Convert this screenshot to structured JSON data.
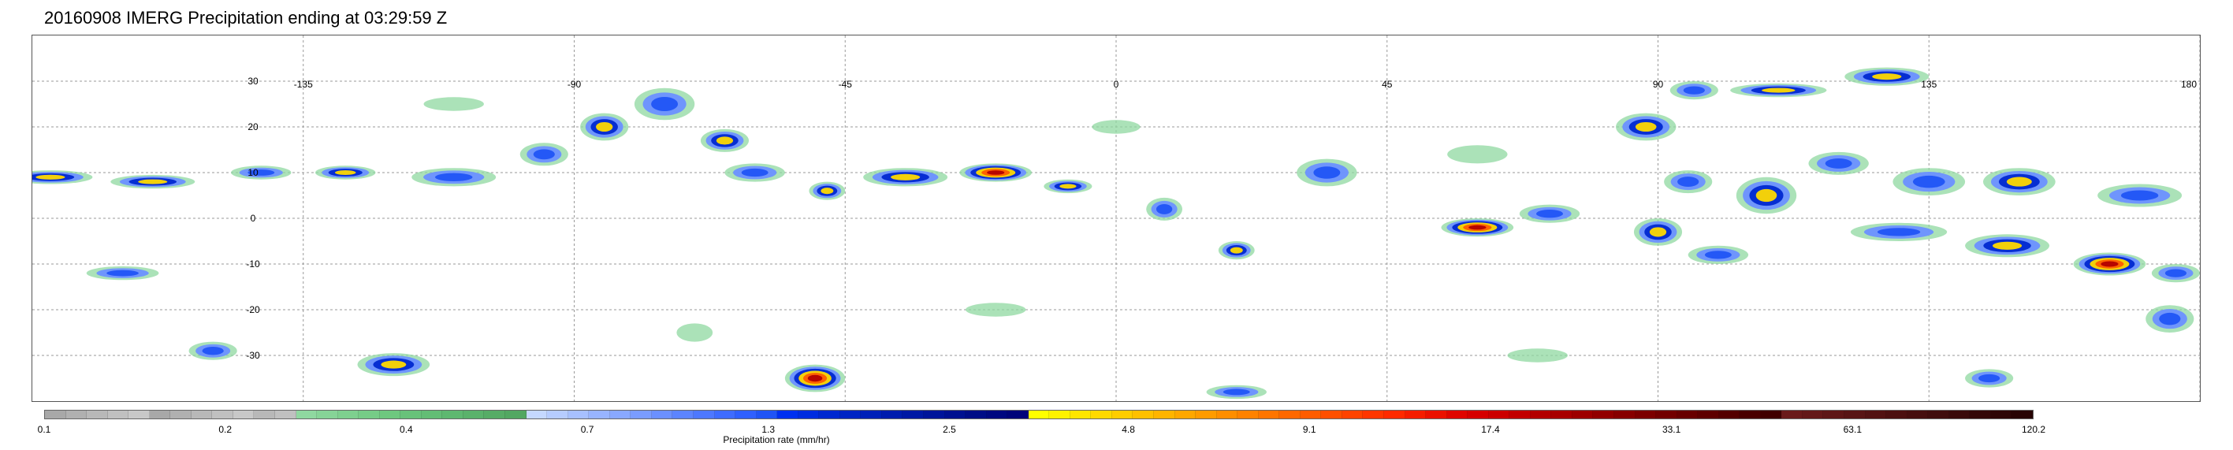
{
  "title": "20160908 IMERG Precipitation ending at 03:29:59 Z",
  "map": {
    "lon_range": [
      -180,
      180
    ],
    "lat_range": [
      -40,
      40
    ],
    "gridlines": true,
    "lon_labels": [
      {
        "lon": -135,
        "text": "-135"
      },
      {
        "lon": -90,
        "text": "-90"
      },
      {
        "lon": -45,
        "text": "-45"
      },
      {
        "lon": 0,
        "text": "0"
      },
      {
        "lon": 45,
        "text": "45"
      },
      {
        "lon": 90,
        "text": "90"
      },
      {
        "lon": 135,
        "text": "135"
      },
      {
        "lon": 180,
        "text": "180"
      }
    ],
    "lat_labels": [
      {
        "lat": 30,
        "text": "30"
      },
      {
        "lat": 20,
        "text": "20"
      },
      {
        "lat": 10,
        "text": "10"
      },
      {
        "lat": 0,
        "text": "0"
      },
      {
        "lat": -10,
        "text": "-10"
      },
      {
        "lat": -20,
        "text": "-20"
      },
      {
        "lat": -30,
        "text": "-30"
      }
    ],
    "precip_systems": [
      {
        "lon": -177,
        "lat": 9,
        "w": 14,
        "h": 3,
        "intensity": 3
      },
      {
        "lon": -160,
        "lat": 8,
        "w": 14,
        "h": 3,
        "intensity": 3
      },
      {
        "lon": -142,
        "lat": 10,
        "w": 10,
        "h": 3,
        "intensity": 2
      },
      {
        "lon": -128,
        "lat": 10,
        "w": 10,
        "h": 3,
        "intensity": 3
      },
      {
        "lon": -110,
        "lat": 9,
        "w": 14,
        "h": 4,
        "intensity": 2
      },
      {
        "lon": -95,
        "lat": 14,
        "w": 8,
        "h": 5,
        "intensity": 2
      },
      {
        "lon": -85,
        "lat": 20,
        "w": 8,
        "h": 6,
        "intensity": 3
      },
      {
        "lon": -75,
        "lat": 25,
        "w": 10,
        "h": 7,
        "intensity": 2
      },
      {
        "lon": -65,
        "lat": 17,
        "w": 8,
        "h": 5,
        "intensity": 3
      },
      {
        "lon": -60,
        "lat": 10,
        "w": 10,
        "h": 4,
        "intensity": 2
      },
      {
        "lon": -48,
        "lat": 6,
        "w": 6,
        "h": 4,
        "intensity": 3
      },
      {
        "lon": -35,
        "lat": 9,
        "w": 14,
        "h": 4,
        "intensity": 3
      },
      {
        "lon": -20,
        "lat": 10,
        "w": 12,
        "h": 4,
        "intensity": 4
      },
      {
        "lon": -8,
        "lat": 7,
        "w": 8,
        "h": 3,
        "intensity": 3
      },
      {
        "lon": 8,
        "lat": 2,
        "w": 6,
        "h": 5,
        "intensity": 2
      },
      {
        "lon": 20,
        "lat": -7,
        "w": 6,
        "h": 4,
        "intensity": 3
      },
      {
        "lon": 35,
        "lat": 10,
        "w": 10,
        "h": 6,
        "intensity": 2
      },
      {
        "lon": 60,
        "lat": -2,
        "w": 12,
        "h": 4,
        "intensity": 4
      },
      {
        "lon": 72,
        "lat": 1,
        "w": 10,
        "h": 4,
        "intensity": 2
      },
      {
        "lon": 88,
        "lat": 20,
        "w": 10,
        "h": 6,
        "intensity": 3
      },
      {
        "lon": 96,
        "lat": 28,
        "w": 8,
        "h": 4,
        "intensity": 2
      },
      {
        "lon": 110,
        "lat": 28,
        "w": 16,
        "h": 3,
        "intensity": 3
      },
      {
        "lon": 128,
        "lat": 31,
        "w": 14,
        "h": 4,
        "intensity": 3
      },
      {
        "lon": 95,
        "lat": 8,
        "w": 8,
        "h": 5,
        "intensity": 2
      },
      {
        "lon": 108,
        "lat": 5,
        "w": 10,
        "h": 8,
        "intensity": 3
      },
      {
        "lon": 120,
        "lat": 12,
        "w": 10,
        "h": 5,
        "intensity": 2
      },
      {
        "lon": 135,
        "lat": 8,
        "w": 12,
        "h": 6,
        "intensity": 2
      },
      {
        "lon": 150,
        "lat": 8,
        "w": 12,
        "h": 6,
        "intensity": 3
      },
      {
        "lon": 170,
        "lat": 5,
        "w": 14,
        "h": 5,
        "intensity": 2
      },
      {
        "lon": 90,
        "lat": -3,
        "w": 8,
        "h": 6,
        "intensity": 3
      },
      {
        "lon": 100,
        "lat": -8,
        "w": 10,
        "h": 4,
        "intensity": 2
      },
      {
        "lon": 130,
        "lat": -3,
        "w": 16,
        "h": 4,
        "intensity": 2
      },
      {
        "lon": 148,
        "lat": -6,
        "w": 14,
        "h": 5,
        "intensity": 3
      },
      {
        "lon": 165,
        "lat": -10,
        "w": 12,
        "h": 5,
        "intensity": 4
      },
      {
        "lon": 176,
        "lat": -12,
        "w": 8,
        "h": 4,
        "intensity": 2
      },
      {
        "lon": -165,
        "lat": -12,
        "w": 12,
        "h": 3,
        "intensity": 2
      },
      {
        "lon": -150,
        "lat": -29,
        "w": 8,
        "h": 4,
        "intensity": 2
      },
      {
        "lon": -120,
        "lat": -32,
        "w": 12,
        "h": 5,
        "intensity": 3
      },
      {
        "lon": -50,
        "lat": -35,
        "w": 10,
        "h": 6,
        "intensity": 4
      },
      {
        "lon": -70,
        "lat": -25,
        "w": 6,
        "h": 4,
        "intensity": 1
      },
      {
        "lon": -20,
        "lat": -20,
        "w": 10,
        "h": 3,
        "intensity": 1
      },
      {
        "lon": 20,
        "lat": -38,
        "w": 10,
        "h": 3,
        "intensity": 2
      },
      {
        "lon": 145,
        "lat": -35,
        "w": 8,
        "h": 4,
        "intensity": 2
      },
      {
        "lon": 175,
        "lat": -22,
        "w": 8,
        "h": 6,
        "intensity": 2
      },
      {
        "lon": 60,
        "lat": 14,
        "w": 10,
        "h": 4,
        "intensity": 1
      },
      {
        "lon": 0,
        "lat": 20,
        "w": 8,
        "h": 3,
        "intensity": 1
      },
      {
        "lon": -110,
        "lat": 25,
        "w": 10,
        "h": 3,
        "intensity": 1
      },
      {
        "lon": 70,
        "lat": -30,
        "w": 10,
        "h": 3,
        "intensity": 1
      }
    ]
  },
  "colorbar": {
    "label": "Precipitation rate (mm/hr)",
    "colors": [
      "#a8a8a8",
      "#b0b0b0",
      "#b8b8b8",
      "#c0c0c0",
      "#c8c8c8",
      "#a8a8a8",
      "#b0b0b0",
      "#b8b8b8",
      "#c0c0c0",
      "#c8c8c8",
      "#b8b8b8",
      "#c0c0c0",
      "#8fd8a0",
      "#86d497",
      "#7ed08f",
      "#76cc87",
      "#6ec87f",
      "#68c27a",
      "#63bd75",
      "#5eb870",
      "#5ab26b",
      "#56ac66",
      "#52a762",
      "#c5d8ff",
      "#b6ccff",
      "#a7c0ff",
      "#98b4ff",
      "#89a8ff",
      "#7a9cff",
      "#6b90ff",
      "#5c84ff",
      "#4d78ff",
      "#3e6cff",
      "#2f60ff",
      "#2054f5",
      "#0030f0",
      "#002ce0",
      "#0028d0",
      "#0024c4",
      "#0020b8",
      "#001cae",
      "#0018a4",
      "#00149a",
      "#001090",
      "#000c86",
      "#000880",
      "#00047a",
      "#ffff00",
      "#fff200",
      "#ffe600",
      "#ffd900",
      "#ffcd00",
      "#ffc000",
      "#ffb400",
      "#ffa700",
      "#ff9b00",
      "#ff8e00",
      "#ff8200",
      "#ff7500",
      "#ff6800",
      "#ff5c00",
      "#ff4f00",
      "#ff4300",
      "#ff3600",
      "#ff2a00",
      "#f51d00",
      "#eb1100",
      "#e00500",
      "#d60000",
      "#cc0000",
      "#c20000",
      "#b30000",
      "#a80000",
      "#9d0000",
      "#920000",
      "#870000",
      "#7c0000",
      "#720000",
      "#680000",
      "#5e0000",
      "#540000",
      "#4a0000",
      "#400000",
      "#6a1a1a",
      "#641818",
      "#5e1616",
      "#581414",
      "#521212",
      "#4c1010",
      "#460e0e",
      "#400c0c",
      "#3a0a0a",
      "#340808",
      "#2e0606",
      "#280404"
    ],
    "ticks": [
      {
        "frac": 0.0,
        "text": "0.1"
      },
      {
        "frac": 0.091,
        "text": "0.2"
      },
      {
        "frac": 0.182,
        "text": "0.4"
      },
      {
        "frac": 0.273,
        "text": "0.7"
      },
      {
        "frac": 0.364,
        "text": "1.3"
      },
      {
        "frac": 0.455,
        "text": "2.5"
      },
      {
        "frac": 0.545,
        "text": "4.8"
      },
      {
        "frac": 0.636,
        "text": "9.1"
      },
      {
        "frac": 0.727,
        "text": "17.4"
      },
      {
        "frac": 0.818,
        "text": "33.1"
      },
      {
        "frac": 0.909,
        "text": "63.1"
      },
      {
        "frac": 1.0,
        "text": "120.2"
      }
    ]
  }
}
